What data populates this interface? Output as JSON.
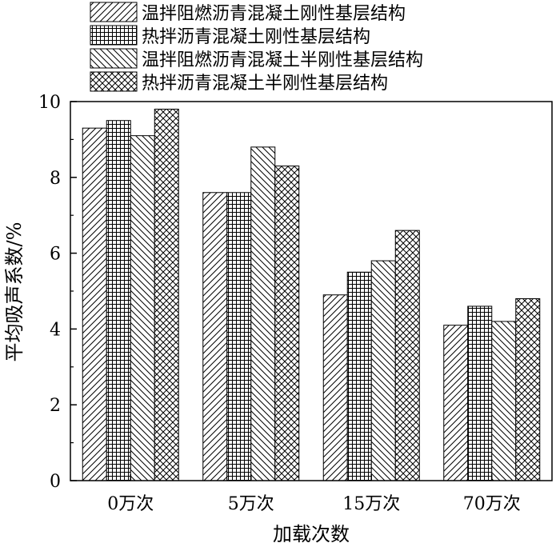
{
  "chart_data": {
    "type": "bar",
    "xlabel": "加载次数",
    "ylabel": "平均吸声系数/%",
    "ylim": [
      0,
      10
    ],
    "yticks": [
      0,
      2,
      4,
      6,
      8,
      10
    ],
    "categories": [
      "0万次",
      "5万次",
      "15万次",
      "70万次"
    ],
    "legend_position": "top",
    "series": [
      {
        "name": "温拌阻燃沥青混凝土刚性基层结构",
        "pattern": "diagonal-right",
        "values": [
          9.3,
          7.6,
          4.9,
          4.1
        ]
      },
      {
        "name": "热拌沥青混凝土刚性基层结构",
        "pattern": "grid",
        "values": [
          9.5,
          7.6,
          5.5,
          4.6
        ]
      },
      {
        "name": "温拌阻燃沥青混凝土半刚性基层结构",
        "pattern": "diagonal-left",
        "values": [
          9.1,
          8.8,
          5.8,
          4.2
        ]
      },
      {
        "name": "热拌沥青混凝土半刚性基层结构",
        "pattern": "crosshatch",
        "values": [
          9.8,
          8.3,
          6.6,
          4.8
        ]
      }
    ]
  }
}
